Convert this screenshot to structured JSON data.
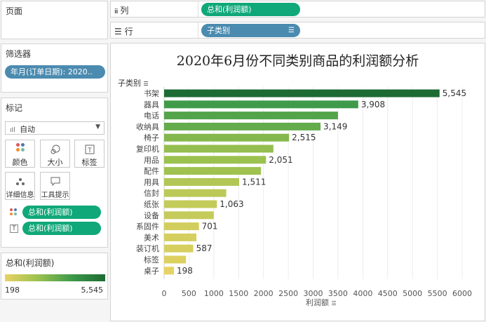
{
  "panels": {
    "pages": {
      "title": "页面"
    },
    "filters": {
      "title": "筛选器",
      "pill": "年月(订单日期): 2020.."
    },
    "marks": {
      "title": "标记",
      "type": "自动",
      "buttons": {
        "color": "颜色",
        "size": "大小",
        "label": "标签",
        "detail": "详细信息",
        "tooltip": "工具提示"
      },
      "fields": [
        "总和(利润额)",
        "总和(利润额)"
      ]
    },
    "legend": {
      "title": "总和(利润额)",
      "min": "198",
      "max": "5,545"
    }
  },
  "shelves": {
    "columns": {
      "label": "列",
      "pill": "总和(利润额)"
    },
    "rows": {
      "label": "行",
      "pill": "子类别"
    }
  },
  "colors": {
    "low": "#e6d363",
    "high": "#1d6b33",
    "pill_green": "#10a878",
    "pill_blue": "#4b8bb0"
  },
  "chart_data": {
    "type": "bar",
    "orientation": "horizontal",
    "title": "2020年6月份不同类别商品的利润额分析",
    "ylabel": "子类别",
    "xlabel": "利润额",
    "xlim": [
      0,
      6000
    ],
    "xticks": [
      0,
      500,
      1000,
      1500,
      2000,
      2500,
      3000,
      3500,
      4000,
      4500,
      5000,
      5500,
      6000
    ],
    "grid": true,
    "categories": [
      "书架",
      "器具",
      "电话",
      "收纳具",
      "椅子",
      "复印机",
      "用品",
      "配件",
      "用具",
      "信封",
      "纸张",
      "设备",
      "系固件",
      "美术",
      "装订机",
      "标签",
      "桌子"
    ],
    "values": [
      5545,
      3908,
      3500,
      3149,
      2515,
      2200,
      2051,
      1950,
      1511,
      1250,
      1063,
      1000,
      701,
      650,
      587,
      440,
      198
    ],
    "data_labels": [
      "5,545",
      "3,908",
      "",
      "3,149",
      "2,515",
      "",
      "2,051",
      "",
      "1,511",
      "",
      "1,063",
      "",
      "701",
      "",
      "587",
      "",
      "198"
    ]
  }
}
